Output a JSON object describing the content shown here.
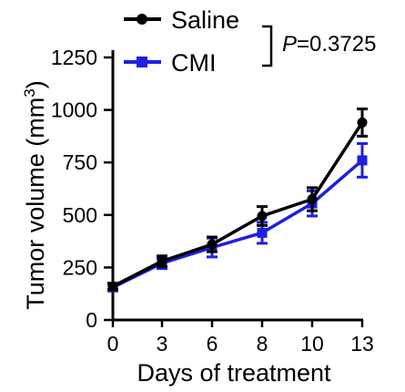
{
  "chart_data": {
    "type": "line",
    "xlabel": "Days of treatment",
    "ylabel_main": "Tumor volume (mm",
    "ylabel_sup": "3",
    "ylabel_close": ")",
    "ylim": [
      0,
      1250
    ],
    "x": [
      0,
      3,
      6,
      8,
      10,
      13
    ],
    "x_ticks": [
      "0",
      "3",
      "6",
      "8",
      "10",
      "13"
    ],
    "y_ticks": [
      0,
      250,
      500,
      750,
      1000,
      1250
    ],
    "grid": false,
    "legend_position": "top-right",
    "series": [
      {
        "name": "Saline",
        "color": "#000000",
        "marker": "circle",
        "values": [
          160,
          280,
          360,
          495,
          575,
          940
        ],
        "errors": [
          15,
          25,
          35,
          45,
          55,
          65
        ]
      },
      {
        "name": "CMI",
        "color": "#1f1fe0",
        "marker": "square",
        "values": [
          155,
          270,
          345,
          415,
          555,
          760
        ],
        "errors": [
          15,
          25,
          45,
          50,
          60,
          80
        ]
      }
    ],
    "annotation_p_italic": "P",
    "annotation_p_value": "=0.3725"
  }
}
